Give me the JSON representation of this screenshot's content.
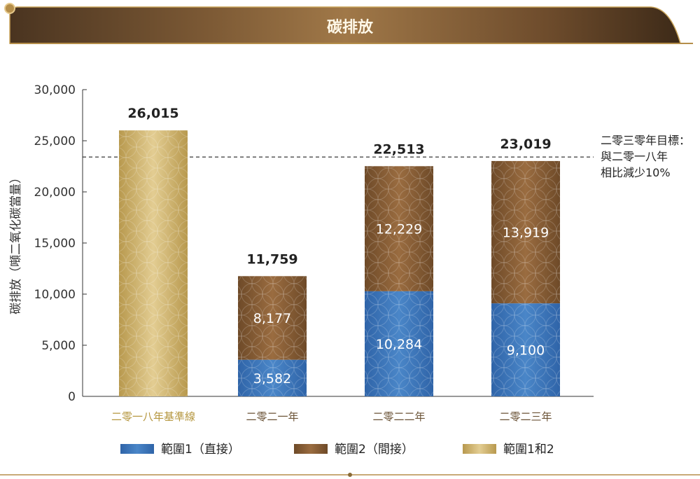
{
  "banner": {
    "title": "碳排放"
  },
  "chart_data": {
    "type": "bar",
    "stacked": true,
    "title": "",
    "ylabel": "碳排放（噸二氧化碳當量）",
    "xlabel": "",
    "ylim": [
      0,
      30000
    ],
    "yticks": [
      "0",
      "5,000",
      "10,000",
      "15,000",
      "20,000",
      "25,000",
      "30,000"
    ],
    "ytick_values": [
      0,
      5000,
      10000,
      15000,
      20000,
      25000,
      30000
    ],
    "grid": false,
    "categories": [
      "二零一八年基準線",
      "二零二一年",
      "二零二二年",
      "二零二三年"
    ],
    "category_colors": [
      "#b5963e",
      "#6a5235",
      "#6a5235",
      "#6a5235"
    ],
    "series": [
      {
        "name": "範圍1（直接）",
        "color": "#3a6fb0",
        "values": [
          null,
          3582,
          10284,
          9100
        ],
        "labels": [
          "",
          "3,582",
          "10,284",
          "9,100"
        ]
      },
      {
        "name": "範圍2（間接）",
        "color": "#8b5e34",
        "values": [
          null,
          8177,
          12229,
          13919
        ],
        "labels": [
          "",
          "8,177",
          "12,229",
          "13,919"
        ]
      },
      {
        "name": "範圍1和2",
        "color": "#c9b070",
        "values": [
          26015,
          null,
          null,
          null
        ],
        "labels": [
          "",
          "",
          "",
          ""
        ]
      }
    ],
    "totals": [
      26015,
      11759,
      22513,
      23019
    ],
    "total_labels": [
      "26,015",
      "11,759",
      "22,513",
      "23,019"
    ],
    "target": {
      "value": 23413,
      "lines": [
        "二零三零年目標：",
        "與二零一八年",
        "相比減少10%"
      ]
    },
    "legend": {
      "placement": "bottom",
      "items": [
        {
          "label": "範圍1（直接）",
          "color": "#3a6fb0"
        },
        {
          "label": "範圍2（間接）",
          "color": "#8b5e34"
        },
        {
          "label": "範圍1和2",
          "color": "#c9b070"
        }
      ]
    }
  }
}
